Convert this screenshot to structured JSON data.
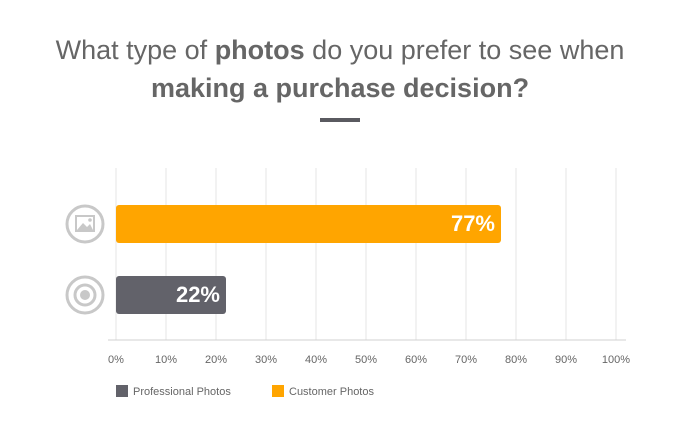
{
  "chart_data": {
    "type": "bar",
    "orientation": "horizontal",
    "title": [
      {
        "text": "What type of ",
        "bold": false
      },
      {
        "text": "photos",
        "bold": true
      },
      {
        "text": " do you prefer to see when",
        "bold": false
      },
      {
        "text": "making a purchase decision?",
        "bold": true,
        "newline": true
      }
    ],
    "categories": [
      null,
      null
    ],
    "series": [
      {
        "name": "Professional Photos",
        "color": "#62626a",
        "values": [
          null,
          22
        ],
        "value_labels": [
          null,
          "22%"
        ]
      },
      {
        "name": "Customer Photos",
        "color": "#ffa500",
        "values": [
          77,
          null
        ],
        "value_labels": [
          "77%",
          null
        ]
      }
    ],
    "xlim": [
      0,
      100
    ],
    "xticks": [
      {
        "value": 0,
        "label": "0%"
      },
      {
        "value": 10,
        "label": "10%"
      },
      {
        "value": 20,
        "label": "20%"
      },
      {
        "value": 30,
        "label": "30%"
      },
      {
        "value": 40,
        "label": "40%"
      },
      {
        "value": 50,
        "label": "50%"
      },
      {
        "value": 60,
        "label": "60%"
      },
      {
        "value": 70,
        "label": "70%"
      },
      {
        "value": 80,
        "label": "80%"
      },
      {
        "value": 90,
        "label": "90%"
      },
      {
        "value": 100,
        "label": "100%"
      }
    ],
    "grid": true,
    "legend": "bottom"
  }
}
